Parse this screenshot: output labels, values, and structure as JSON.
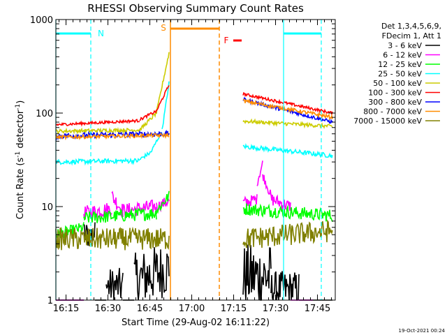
{
  "chart_data": {
    "type": "line",
    "title": "RHESSI Observing Summary Count Rates",
    "xlabel": "Start Time (29-Aug-02 16:11:22)",
    "ylabel_main": "Count Rate (s",
    "ylabel_sup1": "-1",
    "ylabel_mid": " detector",
    "ylabel_sup2": "-1",
    "ylabel_end": ")",
    "yscale": "log",
    "ylim": [
      1,
      1000
    ],
    "xlim_min": [
      0,
      100
    ],
    "y_ticks": [
      {
        "value": 1,
        "label": "1"
      },
      {
        "value": 10,
        "label": "10"
      },
      {
        "value": 100,
        "label": "100"
      },
      {
        "value": 1000,
        "label": "1000"
      }
    ],
    "x_ticks": [
      {
        "t": 3.63,
        "label": "16:15"
      },
      {
        "t": 18.63,
        "label": "16:30"
      },
      {
        "t": 33.63,
        "label": "16:45"
      },
      {
        "t": 48.63,
        "label": "17:00"
      },
      {
        "t": 63.63,
        "label": "17:15"
      },
      {
        "t": 78.63,
        "label": "17:30"
      },
      {
        "t": 93.63,
        "label": "17:45"
      }
    ],
    "legend_header": [
      "Det 1,3,4,5,6,9,",
      "FDecim 1, Att 1"
    ],
    "legend_position": "top-right (outside plot)",
    "series": [
      {
        "name": "3 - 6 keV",
        "color": "#000000",
        "segments": [
          {
            "t0": 0.0,
            "t1": 10.0,
            "y0": 1,
            "y1": 1,
            "noise": 0.0
          },
          {
            "t0": 10.0,
            "t1": 14.0,
            "y0": 5,
            "y1": 5,
            "noise": 0.15
          },
          {
            "t0": 14.0,
            "t1": 18.0,
            "y0": 1,
            "y1": 1,
            "noise": 0.0
          },
          {
            "t0": 18.0,
            "t1": 24.0,
            "y0": 1.4,
            "y1": 1.4,
            "noise": 0.2
          },
          {
            "t0": 24.0,
            "t1": 28.0,
            "y0": 1,
            "y1": 1,
            "noise": 0.0
          },
          {
            "t0": 28.0,
            "t1": 40.5,
            "y0": 1.6,
            "y1": 2.2,
            "noise": 0.3
          },
          {
            "t0": 67.0,
            "t1": 77.0,
            "y0": 1.8,
            "y1": 1.8,
            "noise": 0.35
          },
          {
            "t0": 77.0,
            "t1": 87.0,
            "y0": 1.3,
            "y1": 1.3,
            "noise": 0.2
          },
          {
            "t0": 87.0,
            "t1": 99.0,
            "y0": 1,
            "y1": 1,
            "noise": 0.0
          }
        ]
      },
      {
        "name": "6 - 12 keV",
        "color": "#ff00ff",
        "segments": [
          {
            "t0": 0.0,
            "t1": 10.0,
            "y0": 1,
            "y1": 1,
            "noise": 0.0
          },
          {
            "t0": 10.0,
            "t1": 20.0,
            "y0": 8.5,
            "y1": 9.5,
            "noise": 0.08
          },
          {
            "t0": 20.0,
            "t1": 24.0,
            "y0": 13,
            "y1": 9,
            "noise": 0.08
          },
          {
            "t0": 24.0,
            "t1": 36.0,
            "y0": 9,
            "y1": 10,
            "noise": 0.08
          },
          {
            "t0": 36.0,
            "t1": 40.5,
            "y0": 10,
            "y1": 11.5,
            "noise": 0.06
          },
          {
            "t0": 67.0,
            "t1": 72.0,
            "y0": 11,
            "y1": 12,
            "noise": 0.06
          },
          {
            "t0": 72.0,
            "t1": 74.0,
            "y0": 18,
            "y1": 29,
            "noise": 0.05
          },
          {
            "t0": 74.0,
            "t1": 77.0,
            "y0": 22,
            "y1": 13,
            "noise": 0.05
          },
          {
            "t0": 77.0,
            "t1": 84.0,
            "y0": 12,
            "y1": 10,
            "noise": 0.07
          },
          {
            "t0": 84.0,
            "t1": 92.0,
            "y0": 1,
            "y1": 1,
            "noise": 0.0
          }
        ]
      },
      {
        "name": "12 - 25 keV",
        "color": "#00ff00",
        "segments": [
          {
            "t0": 0.0,
            "t1": 10.0,
            "y0": 5,
            "y1": 6,
            "noise": 0.06
          },
          {
            "t0": 10.0,
            "t1": 36.0,
            "y0": 7.5,
            "y1": 8.5,
            "noise": 0.07
          },
          {
            "t0": 36.0,
            "t1": 40.5,
            "y0": 9,
            "y1": 13,
            "noise": 0.06
          },
          {
            "t0": 67.0,
            "t1": 99.0,
            "y0": 9.5,
            "y1": 8,
            "noise": 0.07
          }
        ]
      },
      {
        "name": "25 - 50 keV",
        "color": "#00ffff",
        "segments": [
          {
            "t0": 0.0,
            "t1": 30.0,
            "y0": 30,
            "y1": 31,
            "noise": 0.025
          },
          {
            "t0": 30.0,
            "t1": 34.0,
            "y0": 32,
            "y1": 38,
            "noise": 0.02
          },
          {
            "t0": 34.0,
            "t1": 38.0,
            "y0": 38,
            "y1": 65,
            "noise": 0.02
          },
          {
            "t0": 38.0,
            "t1": 40.5,
            "y0": 65,
            "y1": 210,
            "noise": 0.02
          },
          {
            "t0": 67.0,
            "t1": 99.0,
            "y0": 44,
            "y1": 35,
            "noise": 0.025
          }
        ]
      },
      {
        "name": "50 - 100 keV",
        "color": "#cccc00",
        "segments": [
          {
            "t0": 0.0,
            "t1": 30.0,
            "y0": 64,
            "y1": 66,
            "noise": 0.02
          },
          {
            "t0": 30.0,
            "t1": 36.0,
            "y0": 66,
            "y1": 100,
            "noise": 0.02
          },
          {
            "t0": 36.0,
            "t1": 40.5,
            "y0": 100,
            "y1": 440,
            "noise": 0.02
          },
          {
            "t0": 67.0,
            "t1": 99.0,
            "y0": 82,
            "y1": 72,
            "noise": 0.02
          }
        ]
      },
      {
        "name": "100 - 300 keV",
        "color": "#ff0000",
        "segments": [
          {
            "t0": 0.0,
            "t1": 30.0,
            "y0": 75,
            "y1": 83,
            "noise": 0.015
          },
          {
            "t0": 30.0,
            "t1": 36.0,
            "y0": 85,
            "y1": 105,
            "noise": 0.015
          },
          {
            "t0": 36.0,
            "t1": 40.5,
            "y0": 105,
            "y1": 200,
            "noise": 0.015
          },
          {
            "t0": 67.0,
            "t1": 99.0,
            "y0": 160,
            "y1": 100,
            "noise": 0.015
          }
        ]
      },
      {
        "name": "300 - 800 keV",
        "color": "#0000ff",
        "segments": [
          {
            "t0": 0.0,
            "t1": 40.5,
            "y0": 57,
            "y1": 60,
            "noise": 0.03
          },
          {
            "t0": 67.0,
            "t1": 99.0,
            "y0": 140,
            "y1": 80,
            "noise": 0.02
          }
        ]
      },
      {
        "name": "800 - 7000 keV",
        "color": "#ff8c00",
        "segments": [
          {
            "t0": 0.0,
            "t1": 40.5,
            "y0": 55,
            "y1": 58,
            "noise": 0.02
          },
          {
            "t0": 67.0,
            "t1": 99.0,
            "y0": 135,
            "y1": 90,
            "noise": 0.02
          }
        ]
      },
      {
        "name": "7000 - 15000 keV",
        "color": "#808000",
        "segments": [
          {
            "t0": 0.0,
            "t1": 40.5,
            "y0": 4.5,
            "y1": 4.5,
            "noise": 0.12
          },
          {
            "t0": 67.0,
            "t1": 99.0,
            "y0": 4.5,
            "y1": 5.5,
            "noise": 0.12
          }
        ]
      }
    ],
    "annotations": {
      "night": {
        "label": "N",
        "color": "#00ffff",
        "intervals": [
          {
            "start": 0.0,
            "end": 12.5
          },
          {
            "start": 81.5,
            "end": 95.0
          }
        ]
      },
      "saa": {
        "label": "S",
        "color": "#ff8c00",
        "intervals": [
          {
            "start": 41.0,
            "end": 58.5
          }
        ]
      },
      "flare": {
        "label": "F",
        "color": "#ff0000",
        "intervals": [
          {
            "start": 63.5,
            "end": 66.5
          }
        ]
      }
    },
    "data_gaps": [
      {
        "start": 40.5,
        "end": 67.0
      }
    ],
    "timestamp": "19-Oct-2021 00:24"
  }
}
